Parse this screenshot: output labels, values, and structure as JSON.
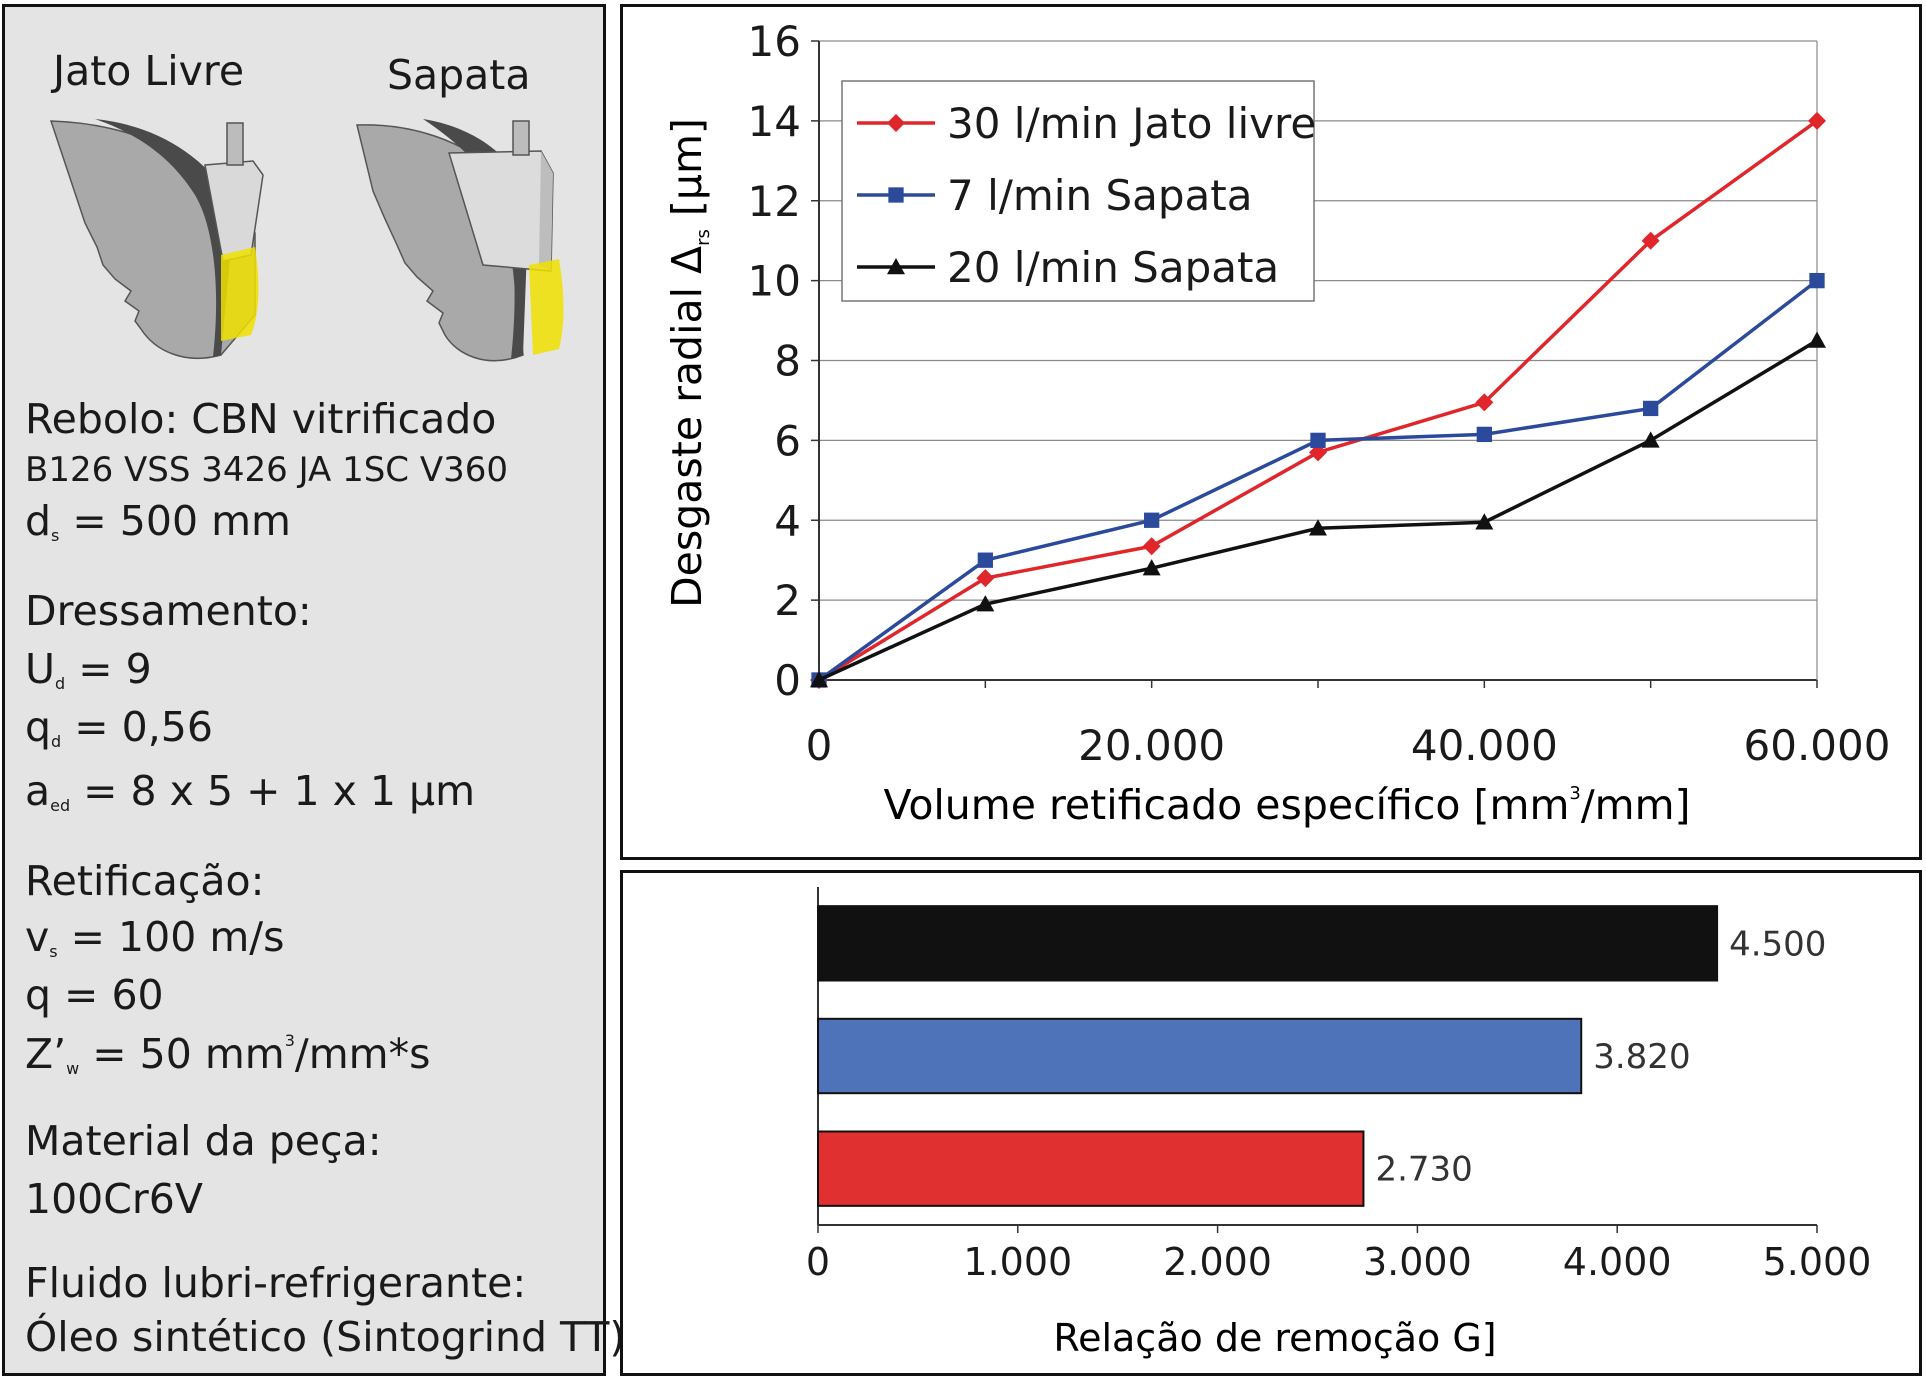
{
  "left": {
    "illus_labels": [
      "Jato Livre",
      "Sapata"
    ],
    "rebolo": "Rebolo: CBN vitrificado",
    "rebolo_spec": "B126 VSS 3426 JA 1SC V360",
    "ds_sym": "d",
    "ds_sub": "s",
    "ds_val": "= 500 mm",
    "dressamento": "Dressamento:",
    "ud_sym": "U",
    "ud_sub": "d",
    "ud_val": "= 9",
    "qd_sym": "q",
    "qd_sub": "d",
    "qd_val": "= 0,56",
    "aed_sym": "a",
    "aed_sub": "ed",
    "aed_val": "= 8 x 5 + 1 x 1 μm",
    "retificacao": "Retificação:",
    "vs_sym": "v",
    "vs_sub": "s",
    "vs_val": "= 100 m/s",
    "q_line": "q = 60",
    "zw_sym": "Z’",
    "zw_sub": "w",
    "zw_val": "= 50 mm",
    "zw_sup": "3",
    "zw_tail": "/mm*s",
    "material": "Material da peça:",
    "material_val": "100Cr6V",
    "fluido": "Fluido lubri-refrigerante:",
    "fluido_val": "Óleo sintético (Sintogrind TT)"
  },
  "chart_data": [
    {
      "type": "line",
      "ylabel": "Desgaste radial Δrs [μm]",
      "ylabel_parts": {
        "main": "Desgaste radial Δ",
        "sub": "rs",
        "unit": " [μm]"
      },
      "xlabel": "Volume retificado específico [mm³/mm]",
      "xlabel_parts": {
        "main": "Volume retificado específico [mm",
        "sup": "3",
        "tail": "/mm]"
      },
      "xlim": [
        0,
        60000
      ],
      "ylim": [
        0,
        16
      ],
      "x_ticks": [
        0,
        20000,
        40000,
        60000
      ],
      "x_tick_labels": [
        "0",
        "20.000",
        "40.000",
        "60.000"
      ],
      "y_ticks": [
        0,
        2,
        4,
        6,
        8,
        10,
        12,
        14,
        16
      ],
      "y_tick_labels": [
        "0",
        "2",
        "4",
        "6",
        "8",
        "10",
        "12",
        "14",
        "16"
      ],
      "grid": "horizontal",
      "legend_position": "top-left",
      "series": [
        {
          "name": "30 l/min Jato livre",
          "color": "#e0262a",
          "marker": "diamond",
          "x": [
            0,
            10000,
            20000,
            30000,
            40000,
            50000,
            60000
          ],
          "y": [
            0,
            2.55,
            3.35,
            5.7,
            6.95,
            11.0,
            14.0
          ]
        },
        {
          "name": "7 l/min Sapata",
          "color": "#2b4a9c",
          "marker": "square",
          "x": [
            0,
            10000,
            20000,
            30000,
            40000,
            50000,
            60000
          ],
          "y": [
            0,
            3.0,
            4.0,
            6.0,
            6.15,
            6.8,
            10.0
          ]
        },
        {
          "name": "20 l/min Sapata",
          "color": "#111111",
          "marker": "triangle",
          "x": [
            0,
            10000,
            20000,
            30000,
            40000,
            50000,
            60000
          ],
          "y": [
            0,
            1.9,
            2.8,
            3.8,
            3.95,
            6.0,
            8.5
          ]
        }
      ]
    },
    {
      "type": "bar",
      "orientation": "horizontal",
      "xlabel": "Relação de remoção G]",
      "xlim": [
        0,
        5000
      ],
      "x_ticks": [
        0,
        1000,
        2000,
        3000,
        4000,
        5000
      ],
      "x_tick_labels": [
        "0",
        "1.000",
        "2.000",
        "3.000",
        "4.000",
        "5.000"
      ],
      "bars": [
        {
          "value": 4500,
          "label": "4.500",
          "color": "#111111"
        },
        {
          "value": 3820,
          "label": "3.820",
          "color": "#4f73b8"
        },
        {
          "value": 2730,
          "label": "2.730",
          "color": "#e0302f"
        }
      ]
    }
  ]
}
